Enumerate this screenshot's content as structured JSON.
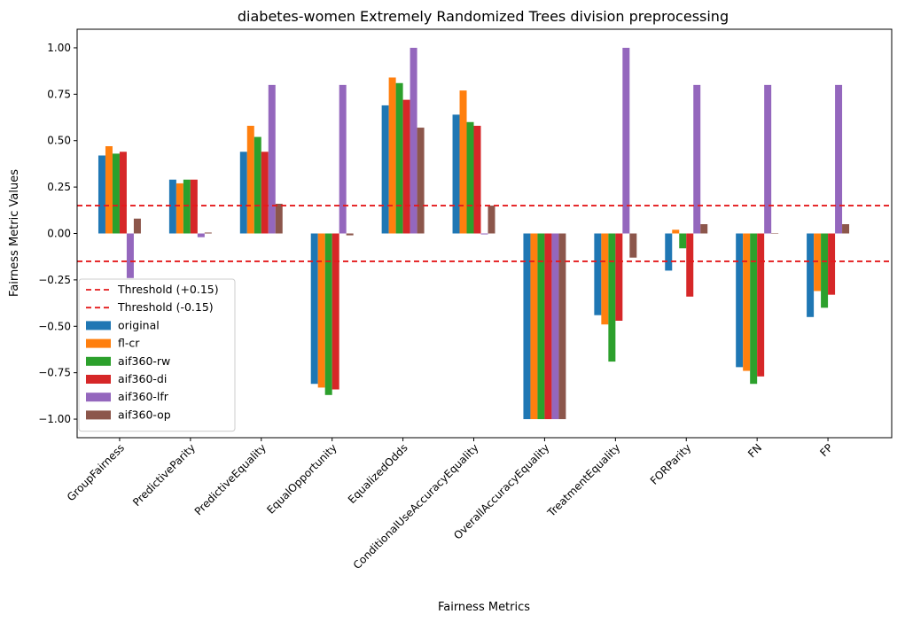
{
  "chart_data": {
    "type": "bar",
    "title": "diabetes-women Extremely Randomized Trees division preprocessing",
    "xlabel": "Fairness Metrics",
    "ylabel": "Fairness Metric Values",
    "ylim": [
      -1.1,
      1.1
    ],
    "yticks": [
      -1.0,
      -0.75,
      -0.5,
      -0.25,
      0.0,
      0.25,
      0.5,
      0.75,
      1.0
    ],
    "ytick_labels": [
      "−1.00",
      "−0.75",
      "−0.50",
      "−0.25",
      "0.00",
      "0.25",
      "0.50",
      "0.75",
      "1.00"
    ],
    "grid": false,
    "legend_position": "lower-left",
    "categories": [
      "GroupFairness",
      "PredictiveParity",
      "PredictiveEquality",
      "EqualOpportunity",
      "EqualizedOdds",
      "ConditionalUseAccuracyEquality",
      "OverallAccuracyEquality",
      "TreatmentEquality",
      "FORParity",
      "FN",
      "FP"
    ],
    "thresholds": [
      {
        "name": "Threshold (+0.15)",
        "value": 0.15,
        "color": "#e41a1c"
      },
      {
        "name": "Threshold (-0.15)",
        "value": -0.15,
        "color": "#e41a1c"
      }
    ],
    "series": [
      {
        "name": "original",
        "color": "#1f77b4",
        "values": [
          0.42,
          0.29,
          0.44,
          -0.81,
          0.69,
          0.64,
          -1.0,
          -0.44,
          -0.2,
          -0.72,
          -0.45
        ]
      },
      {
        "name": "fl-cr",
        "color": "#ff7f0e",
        "values": [
          0.47,
          0.27,
          0.58,
          -0.83,
          0.84,
          0.77,
          -1.0,
          -0.49,
          0.02,
          -0.74,
          -0.31
        ]
      },
      {
        "name": "aif360-rw",
        "color": "#2ca02c",
        "values": [
          0.43,
          0.29,
          0.52,
          -0.87,
          0.81,
          0.6,
          -1.0,
          -0.69,
          -0.08,
          -0.81,
          -0.4
        ]
      },
      {
        "name": "aif360-di",
        "color": "#d62728",
        "values": [
          0.44,
          0.29,
          0.44,
          -0.84,
          0.72,
          0.58,
          -1.0,
          -0.47,
          -0.34,
          -0.77,
          -0.33
        ]
      },
      {
        "name": "aif360-lfr",
        "color": "#9467bd",
        "values": [
          -0.24,
          -0.02,
          0.8,
          0.8,
          1.0,
          -0.005,
          -1.0,
          1.0,
          0.8,
          0.8,
          0.8
        ]
      },
      {
        "name": "aif360-op",
        "color": "#8c564b",
        "values": [
          0.08,
          0.005,
          0.16,
          -0.01,
          0.57,
          0.15,
          -1.0,
          -0.13,
          0.05,
          0.0,
          0.05
        ]
      }
    ]
  }
}
